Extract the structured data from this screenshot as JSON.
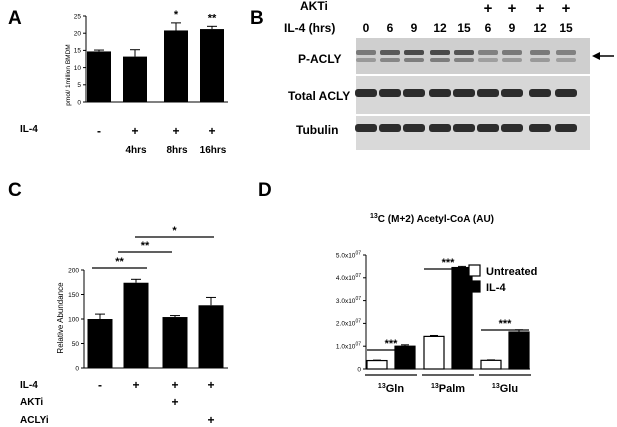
{
  "panels": {
    "A": {
      "label": "A",
      "row_label": "IL-4",
      "row_marks": [
        "-",
        "+",
        "+",
        "+"
      ],
      "time_labels": [
        "",
        "4hrs",
        "8hrs",
        "16hrs"
      ],
      "sig": [
        "",
        "",
        "*",
        "**"
      ]
    },
    "B": {
      "label": "B",
      "akti_label": "AKTi",
      "akti_marks": [
        "",
        "",
        "",
        "",
        "",
        "+",
        "+",
        "+",
        "+"
      ],
      "il4_label": "IL-4 (hrs)",
      "il4_hours": [
        "0",
        "6",
        "9",
        "12",
        "15",
        "6",
        "9",
        "12",
        "15"
      ],
      "blots": [
        "P-ACLY",
        "Total ACLY",
        "Tubulin"
      ]
    },
    "C": {
      "label": "C",
      "rows": [
        {
          "label": "IL-4",
          "marks": [
            "-",
            "+",
            "+",
            "+"
          ]
        },
        {
          "label": "AKTi",
          "marks": [
            "",
            "",
            "+",
            ""
          ]
        },
        {
          "label": "ACLYi",
          "marks": [
            "",
            "",
            "",
            "+"
          ]
        }
      ],
      "sig": [
        {
          "text": "**"
        },
        {
          "text": "**"
        },
        {
          "text": "*"
        }
      ]
    },
    "D": {
      "label": "D",
      "sig": [
        "***",
        "***",
        "***"
      ],
      "group_sup": "13",
      "group_names": [
        "Gln",
        "Palm",
        "Glu"
      ]
    }
  },
  "chart_data": [
    {
      "panel": "A",
      "type": "bar",
      "ylabel": "pmol/ 1million BMDM",
      "ylim": [
        0,
        25
      ],
      "yticks": [
        "0",
        "5",
        "10",
        "15",
        "20",
        "25"
      ],
      "categories": [
        "-",
        "4hrs",
        "8hrs",
        "16hrs"
      ],
      "values": [
        14.7,
        13.2,
        20.8,
        21.2
      ],
      "errors": [
        0.4,
        2.0,
        2.2,
        0.8
      ],
      "colors": {
        "bar": "#000000"
      }
    },
    {
      "panel": "C",
      "type": "bar",
      "ylabel": "Relative Abundance",
      "ylim": [
        0,
        200
      ],
      "yticks": [
        "0",
        "50",
        "100",
        "150",
        "200"
      ],
      "categories": [
        "-",
        "+",
        "+ AKTi",
        "+ ACLYi"
      ],
      "values": [
        100,
        174,
        104,
        128
      ],
      "errors": [
        10,
        7,
        3,
        16
      ],
      "colors": {
        "bar": "#000000"
      }
    },
    {
      "panel": "D",
      "type": "bar",
      "title_sup": "13",
      "title": "C (M+2) Acetyl-CoA (AU)",
      "ylim": [
        0,
        50000000
      ],
      "yticks": [
        "0",
        "1.0x10",
        "2.0x10",
        "3.0x10",
        "4.0x10",
        "5.0x10"
      ],
      "ytick_exp": "07",
      "categories": [
        "13Gln",
        "13Palm",
        "13Glu"
      ],
      "series": [
        {
          "name": "Untreated",
          "values": [
            3700000,
            14300000,
            3800000
          ],
          "errors": [
            200000,
            400000,
            200000
          ],
          "fill": "#ffffff"
        },
        {
          "name": "IL-4",
          "values": [
            10000000,
            44500000,
            16200000
          ],
          "errors": [
            600000,
            500000,
            1000000
          ],
          "fill": "#000000"
        }
      ],
      "legend_position": "top-right"
    }
  ]
}
